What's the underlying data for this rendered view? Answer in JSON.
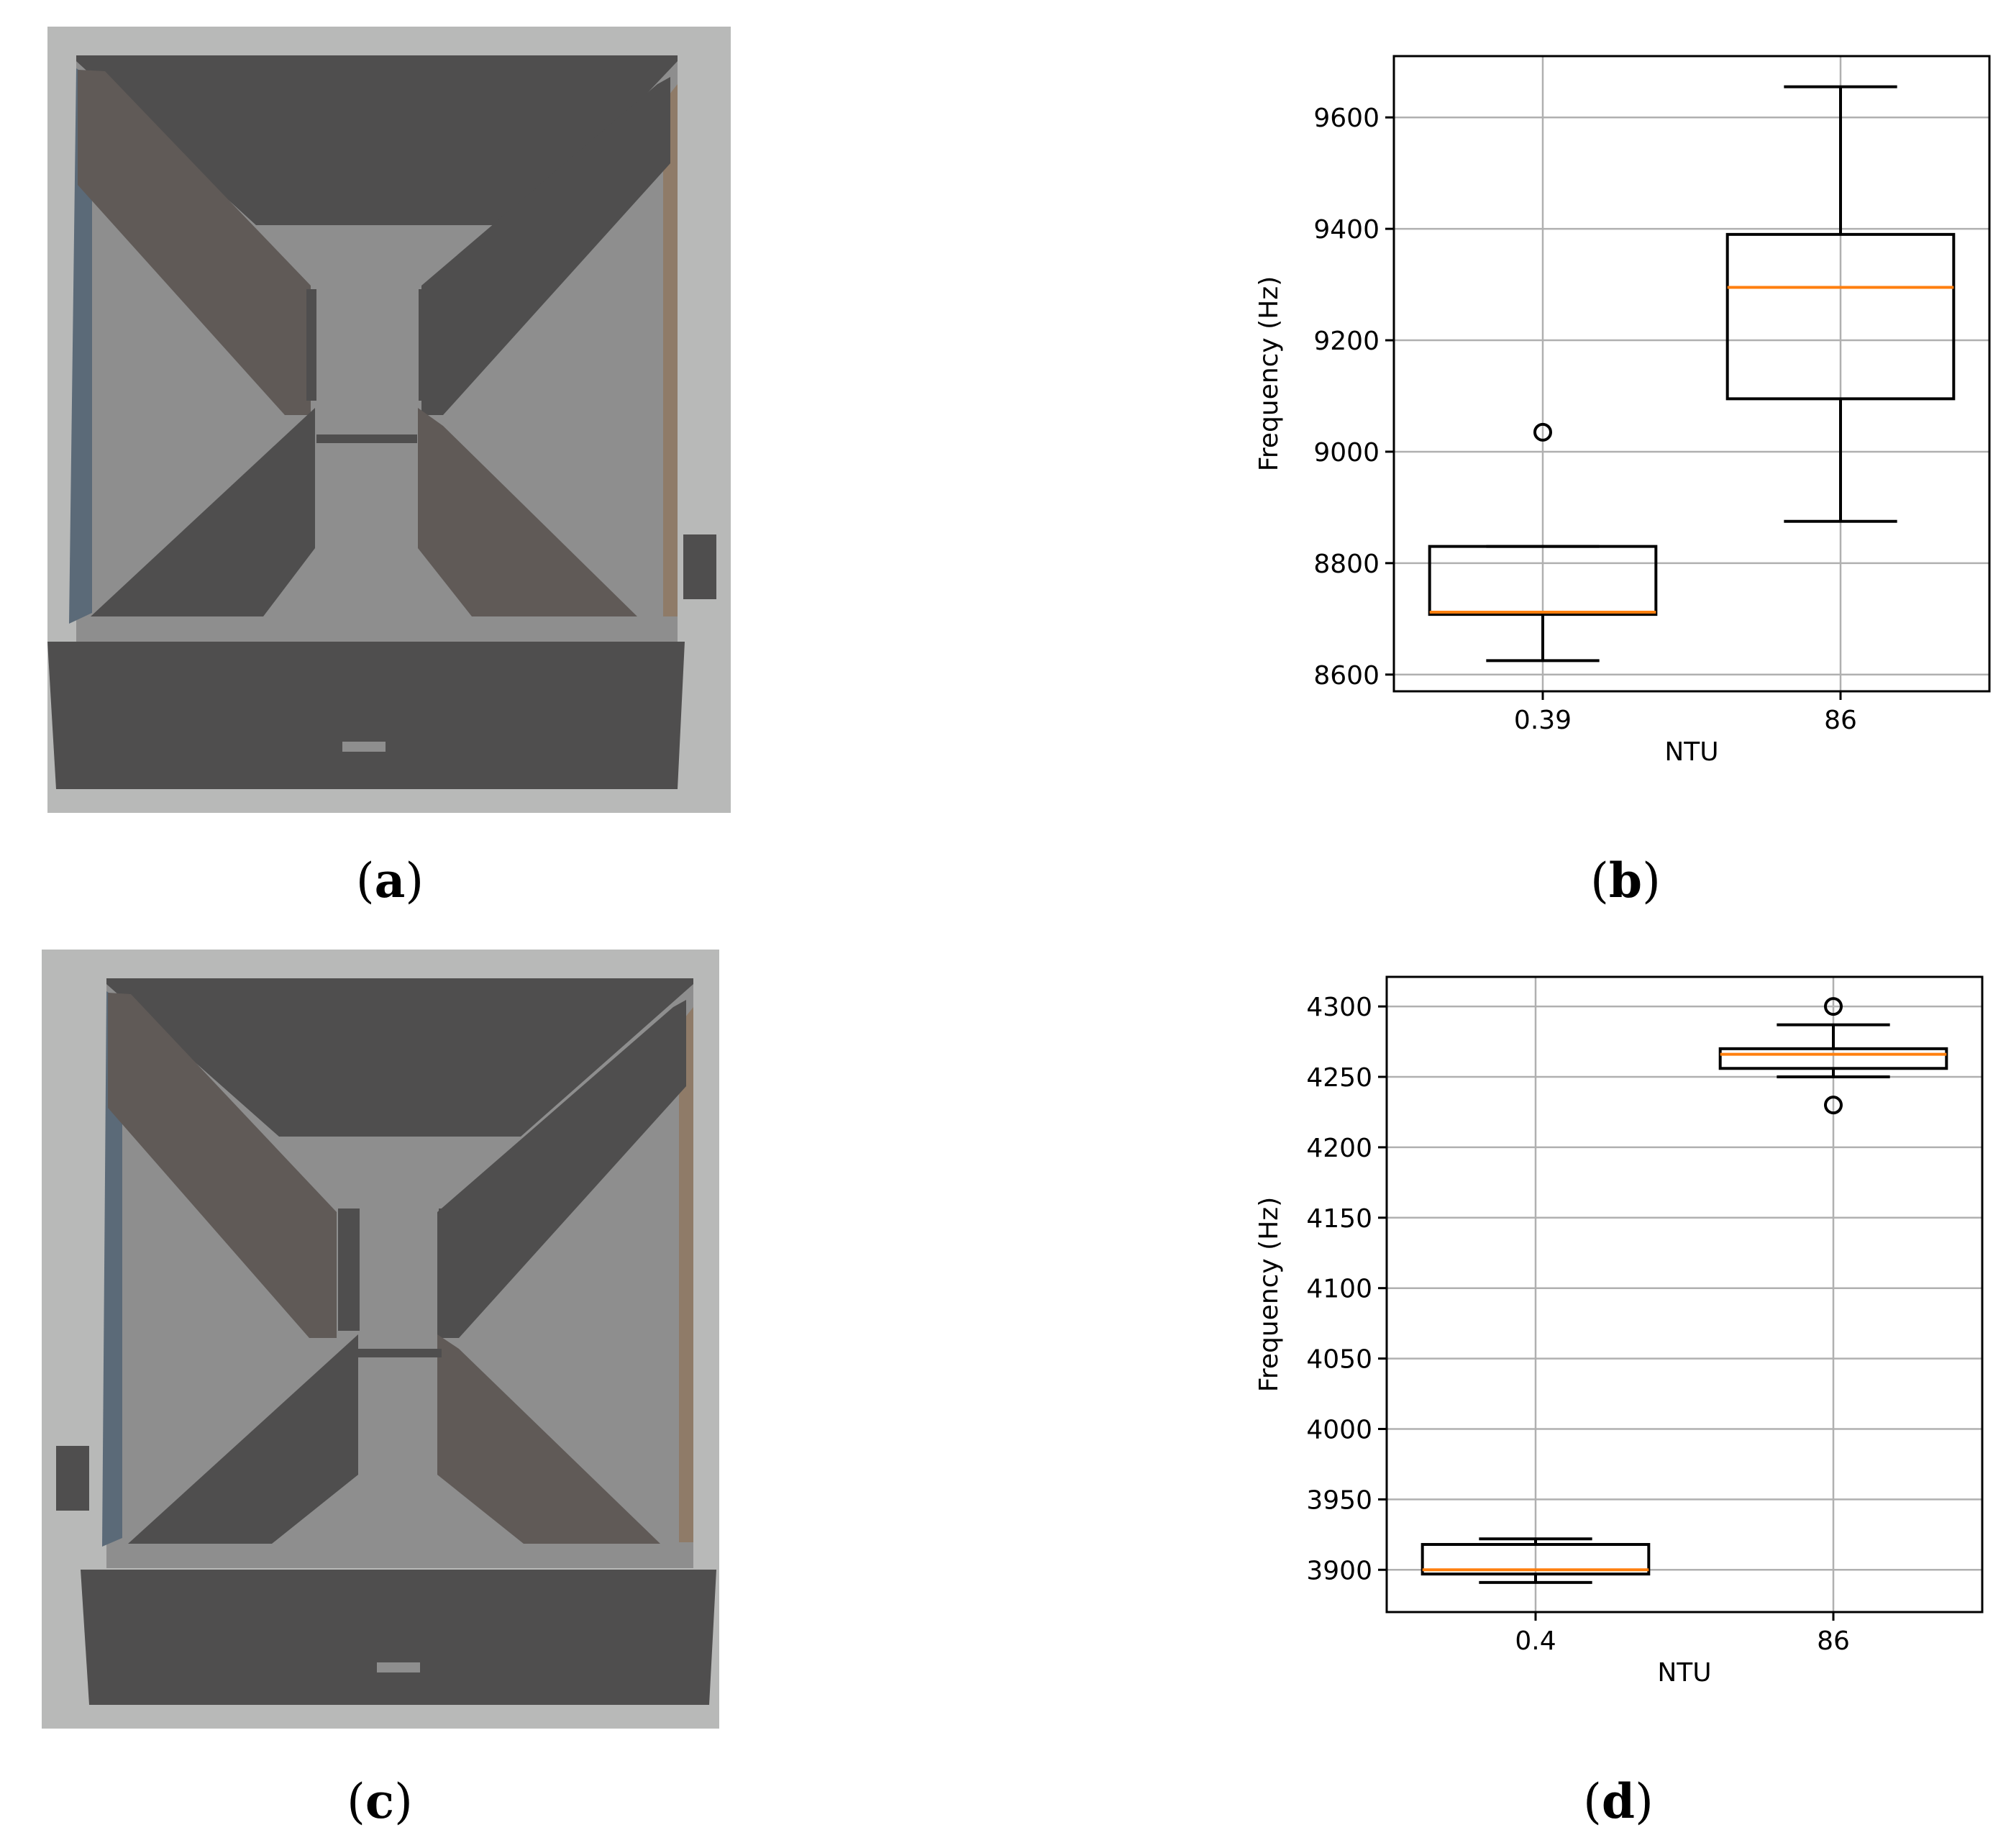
{
  "captions": {
    "a": {
      "open": "(",
      "letter": "a",
      "close": ")"
    },
    "b": {
      "open": "(",
      "letter": "b",
      "close": ")"
    },
    "c": {
      "open": "(",
      "letter": "c",
      "close": ")"
    },
    "d": {
      "open": "(",
      "letter": "d",
      "close": ")"
    }
  },
  "renders": {
    "a": {
      "handle_side": "right"
    },
    "c": {
      "handle_side": "left"
    }
  },
  "colors": {
    "frame_light": "#b8b9b8",
    "floor": "#8e8e8e",
    "panel_dark": "#4f4e4e",
    "panel_warm": "#605a57",
    "wall_blue": "#5b6a78",
    "wall_tan": "#8f7b68",
    "median": "#ff7f0e",
    "grid": "#b0b0b0"
  },
  "chart_data": [
    {
      "id": "b",
      "type": "box",
      "xlabel": "NTU",
      "ylabel": "Frequency (Hz)",
      "categories": [
        "0.39",
        "86"
      ],
      "ylim": [
        8570,
        9710
      ],
      "yticks": [
        8600,
        8800,
        9000,
        9200,
        9400,
        9600
      ],
      "grid": true,
      "boxes": [
        {
          "category": "0.39",
          "whisker_low": 8625,
          "q1": 8708,
          "median": 8712,
          "q3": 8830,
          "whisker_high": 8830,
          "outliers": [
            9035
          ]
        },
        {
          "category": "86",
          "whisker_low": 8875,
          "q1": 9095,
          "median": 9295,
          "q3": 9390,
          "whisker_high": 9655,
          "outliers": []
        }
      ]
    },
    {
      "id": "d",
      "type": "box",
      "xlabel": "NTU",
      "ylabel": "Frequency (Hz)",
      "categories": [
        "0.4",
        "86"
      ],
      "ylim": [
        3870,
        4321
      ],
      "yticks": [
        3900,
        3950,
        4000,
        4050,
        4100,
        4150,
        4200,
        4250,
        4300
      ],
      "grid": true,
      "boxes": [
        {
          "category": "0.4",
          "whisker_low": 3891,
          "q1": 3897,
          "median": 3900,
          "q3": 3918,
          "whisker_high": 3922,
          "outliers": []
        },
        {
          "category": "86",
          "whisker_low": 4250,
          "q1": 4256,
          "median": 4266,
          "q3": 4270,
          "whisker_high": 4287,
          "outliers": [
            4300,
            4230
          ]
        }
      ]
    }
  ]
}
